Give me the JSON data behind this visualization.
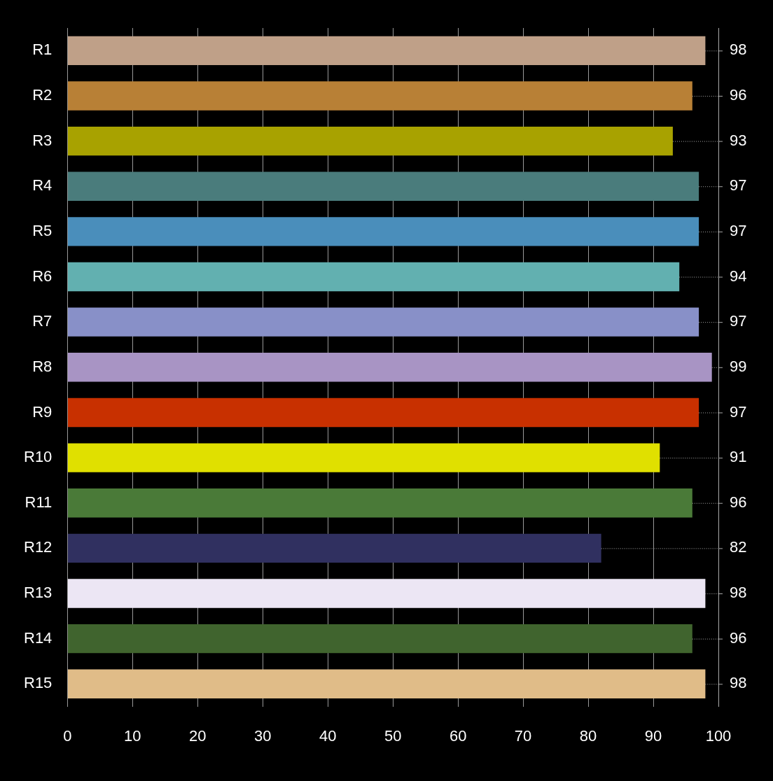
{
  "chart_data": {
    "type": "bar",
    "orientation": "horizontal",
    "categories": [
      "R1",
      "R2",
      "R3",
      "R4",
      "R5",
      "R6",
      "R7",
      "R8",
      "R9",
      "R10",
      "R11",
      "R12",
      "R13",
      "R14",
      "R15"
    ],
    "values": [
      98,
      96,
      93,
      97,
      97,
      94,
      97,
      99,
      97,
      91,
      96,
      82,
      98,
      96,
      98
    ],
    "colors": [
      "#bfa088",
      "#b88036",
      "#a8a200",
      "#4a7c7c",
      "#4a8ebb",
      "#62b0b0",
      "#8890c8",
      "#a894c4",
      "#c83000",
      "#e0e000",
      "#4a7a38",
      "#303060",
      "#ece6f4",
      "#40642e",
      "#e0bc88"
    ],
    "xlim": [
      0,
      100
    ],
    "xticks": [
      0,
      10,
      20,
      30,
      40,
      50,
      60,
      70,
      80,
      90,
      100
    ],
    "grid": "x",
    "data_labels": true,
    "legend": false
  }
}
